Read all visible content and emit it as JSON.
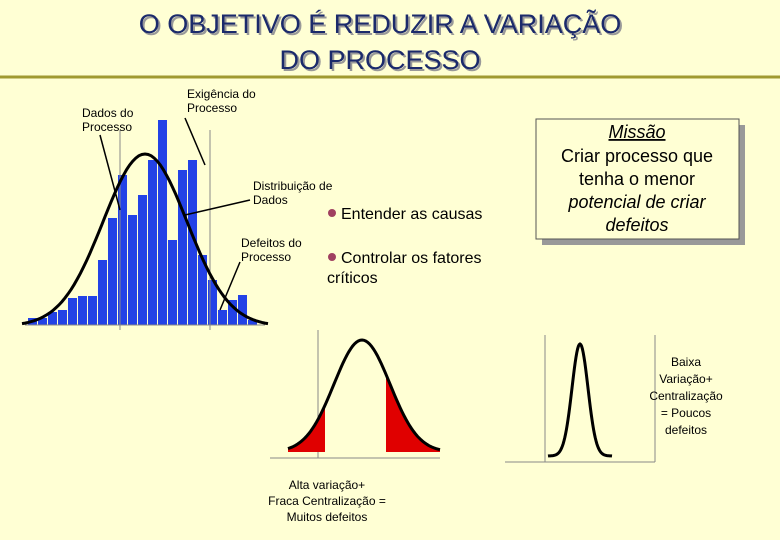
{
  "title": {
    "lines": [
      "O OBJETIVO É REDUZIR A VARIAÇÃO",
      "DO PROCESSO"
    ]
  },
  "labels": {
    "data": [
      "Dados do",
      "Processo"
    ],
    "requirement": [
      "Exigência do",
      "Processo"
    ],
    "distribution": [
      "Distribuição de",
      "Dados"
    ],
    "defects": [
      "Defeitos do",
      "Processo"
    ]
  },
  "bullets": [
    "Entender as causas",
    "Controlar os fatores",
    "críticos"
  ],
  "mission": {
    "heading": "Missão",
    "lines": [
      "Criar processo que",
      "tenha o menor",
      "potencial de criar",
      "defeitos"
    ]
  },
  "low_variation": [
    "Baixa",
    "Variação+",
    "Centralização",
    "= Poucos",
    "defeitos"
  ],
  "high_variation": [
    "Alta variação+",
    "Fraca Centralização =",
    "Muitos defeitos"
  ]
}
